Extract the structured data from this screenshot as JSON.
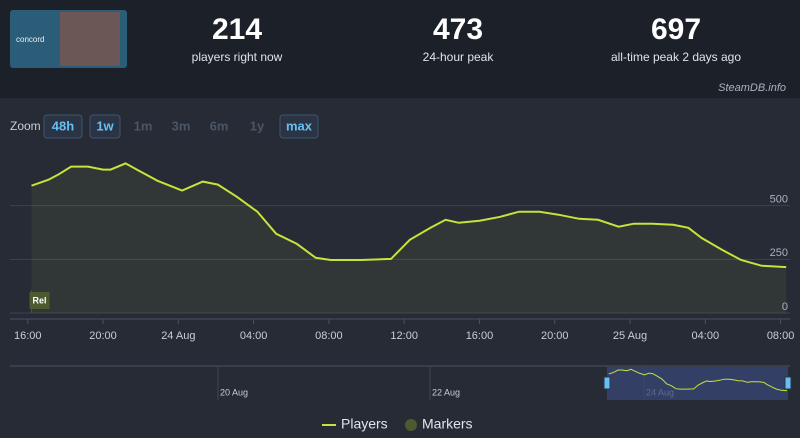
{
  "header": {
    "logo_text": "concord",
    "stats": [
      {
        "value": "214",
        "label": "players right now"
      },
      {
        "value": "473",
        "label": "24-hour peak"
      },
      {
        "value": "697",
        "label": "all-time peak 2 days ago"
      }
    ],
    "source": "SteamDB.info"
  },
  "zoom": {
    "label": "Zoom",
    "buttons": [
      {
        "label": "48h",
        "active": true
      },
      {
        "label": "1w",
        "active": true
      },
      {
        "label": "1m",
        "active": false
      },
      {
        "label": "3m",
        "active": false
      },
      {
        "label": "6m",
        "active": false
      },
      {
        "label": "1y",
        "active": false
      },
      {
        "label": "max",
        "active": true
      }
    ]
  },
  "chart_data": {
    "type": "line",
    "x": [
      0.2,
      1.1,
      1.6,
      2.3,
      3.2,
      4,
      4.4,
      5.2,
      5.8,
      6.9,
      8.2,
      9.3,
      10.1,
      11.1,
      12.2,
      13.2,
      14.3,
      15.3,
      16.1,
      17.7,
      19.3,
      20.3,
      21.4,
      22.2,
      22.9,
      24,
      25.1,
      26.1,
      27.2,
      28.2,
      29.3,
      30.3,
      31.4,
      32.2,
      33.2,
      34.3,
      35.1,
      35.8,
      36.9,
      37.9,
      39,
      40.3
    ],
    "series": [
      {
        "name": "Players",
        "color": "#c6e33a",
        "values": [
          593,
          621,
          644,
          682,
          682,
          668,
          668,
          697,
          668,
          616,
          570,
          612,
          598,
          542,
          472,
          369,
          322,
          257,
          247,
          247,
          252,
          341,
          397,
          434,
          420,
          430,
          448,
          472,
          472,
          458,
          439,
          434,
          402,
          416,
          416,
          411,
          397,
          350,
          294,
          247,
          220,
          214
        ]
      }
    ],
    "xlim": [
      -0.2,
      40.5
    ],
    "ylim": [
      0,
      750
    ],
    "yticks": [
      0,
      250,
      500
    ],
    "grid": true,
    "xticks": [
      {
        "value": 0,
        "label": "16:00"
      },
      {
        "value": 4,
        "label": "20:00"
      },
      {
        "value": 8,
        "label": "24 Aug"
      },
      {
        "value": 12,
        "label": "04:00"
      },
      {
        "value": 16,
        "label": "08:00"
      },
      {
        "value": 20,
        "label": "12:00"
      },
      {
        "value": 24,
        "label": "16:00"
      },
      {
        "value": 28,
        "label": "20:00"
      },
      {
        "value": 32,
        "label": "25 Aug"
      },
      {
        "value": 36,
        "label": "04:00"
      },
      {
        "value": 40,
        "label": "08:00"
      }
    ],
    "markers": [
      {
        "label": "Rel",
        "x": 0.2
      }
    ],
    "marker_legend": "Markers",
    "marker_color": "#4b5a2f",
    "navigator_labels": [
      "20 Aug",
      "22 Aug",
      "24 Aug"
    ]
  }
}
